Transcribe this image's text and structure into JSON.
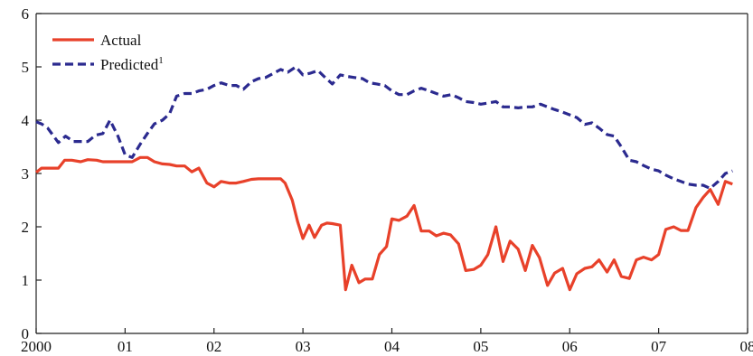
{
  "chart_data": {
    "type": "line",
    "xlim": [
      2000,
      2008
    ],
    "ylim": [
      0,
      6
    ],
    "grid": false,
    "legend_position": "top-left",
    "x_ticks": [
      {
        "value": 2000,
        "label": "2000"
      },
      {
        "value": 2001,
        "label": "01"
      },
      {
        "value": 2002,
        "label": "02"
      },
      {
        "value": 2003,
        "label": "03"
      },
      {
        "value": 2004,
        "label": "04"
      },
      {
        "value": 2005,
        "label": "05"
      },
      {
        "value": 2006,
        "label": "06"
      },
      {
        "value": 2007,
        "label": "07"
      },
      {
        "value": 2008,
        "label": "08"
      }
    ],
    "y_ticks": [
      0,
      1,
      2,
      3,
      4,
      5,
      6
    ],
    "series": [
      {
        "name": "Actual",
        "superscript": "",
        "color": "#e8412a",
        "dash": "solid",
        "points": [
          [
            2000.0,
            3.02
          ],
          [
            2000.06,
            3.1
          ],
          [
            2000.13,
            3.1
          ],
          [
            2000.25,
            3.1
          ],
          [
            2000.32,
            3.25
          ],
          [
            2000.4,
            3.25
          ],
          [
            2000.5,
            3.22
          ],
          [
            2000.58,
            3.26
          ],
          [
            2000.68,
            3.25
          ],
          [
            2000.75,
            3.22
          ],
          [
            2000.88,
            3.22
          ],
          [
            2001.0,
            3.22
          ],
          [
            2001.08,
            3.22
          ],
          [
            2001.17,
            3.3
          ],
          [
            2001.25,
            3.3
          ],
          [
            2001.33,
            3.22
          ],
          [
            2001.42,
            3.18
          ],
          [
            2001.5,
            3.17
          ],
          [
            2001.58,
            3.14
          ],
          [
            2001.67,
            3.14
          ],
          [
            2001.75,
            3.03
          ],
          [
            2001.83,
            3.1
          ],
          [
            2001.92,
            2.82
          ],
          [
            2002.0,
            2.75
          ],
          [
            2002.08,
            2.85
          ],
          [
            2002.17,
            2.82
          ],
          [
            2002.25,
            2.82
          ],
          [
            2002.33,
            2.85
          ],
          [
            2002.42,
            2.89
          ],
          [
            2002.5,
            2.9
          ],
          [
            2002.58,
            2.9
          ],
          [
            2002.67,
            2.9
          ],
          [
            2002.75,
            2.9
          ],
          [
            2002.8,
            2.82
          ],
          [
            2002.88,
            2.5
          ],
          [
            2002.94,
            2.1
          ],
          [
            2003.0,
            1.78
          ],
          [
            2003.07,
            2.03
          ],
          [
            2003.13,
            1.8
          ],
          [
            2003.21,
            2.03
          ],
          [
            2003.27,
            2.07
          ],
          [
            2003.33,
            2.06
          ],
          [
            2003.42,
            2.03
          ],
          [
            2003.48,
            0.82
          ],
          [
            2003.55,
            1.28
          ],
          [
            2003.63,
            0.95
          ],
          [
            2003.7,
            1.02
          ],
          [
            2003.78,
            1.02
          ],
          [
            2003.86,
            1.48
          ],
          [
            2003.94,
            1.63
          ],
          [
            2004.0,
            2.15
          ],
          [
            2004.08,
            2.12
          ],
          [
            2004.17,
            2.2
          ],
          [
            2004.25,
            2.4
          ],
          [
            2004.33,
            1.92
          ],
          [
            2004.42,
            1.92
          ],
          [
            2004.5,
            1.83
          ],
          [
            2004.58,
            1.88
          ],
          [
            2004.66,
            1.85
          ],
          [
            2004.75,
            1.68
          ],
          [
            2004.83,
            1.18
          ],
          [
            2004.92,
            1.2
          ],
          [
            2005.0,
            1.28
          ],
          [
            2005.08,
            1.48
          ],
          [
            2005.17,
            2.0
          ],
          [
            2005.25,
            1.35
          ],
          [
            2005.33,
            1.73
          ],
          [
            2005.42,
            1.58
          ],
          [
            2005.5,
            1.18
          ],
          [
            2005.58,
            1.65
          ],
          [
            2005.66,
            1.42
          ],
          [
            2005.75,
            0.9
          ],
          [
            2005.83,
            1.13
          ],
          [
            2005.92,
            1.22
          ],
          [
            2006.0,
            0.82
          ],
          [
            2006.08,
            1.12
          ],
          [
            2006.17,
            1.22
          ],
          [
            2006.25,
            1.25
          ],
          [
            2006.33,
            1.38
          ],
          [
            2006.42,
            1.15
          ],
          [
            2006.5,
            1.38
          ],
          [
            2006.58,
            1.07
          ],
          [
            2006.67,
            1.03
          ],
          [
            2006.75,
            1.38
          ],
          [
            2006.83,
            1.43
          ],
          [
            2006.92,
            1.38
          ],
          [
            2007.0,
            1.48
          ],
          [
            2007.08,
            1.95
          ],
          [
            2007.17,
            2.0
          ],
          [
            2007.25,
            1.93
          ],
          [
            2007.33,
            1.93
          ],
          [
            2007.42,
            2.36
          ],
          [
            2007.5,
            2.55
          ],
          [
            2007.58,
            2.7
          ],
          [
            2007.67,
            2.42
          ],
          [
            2007.75,
            2.85
          ],
          [
            2007.83,
            2.8
          ]
        ]
      },
      {
        "name": "Predicted",
        "superscript": "1",
        "color": "#2b2a8f",
        "dash": "dashed",
        "points": [
          [
            2000.0,
            3.97
          ],
          [
            2000.06,
            3.93
          ],
          [
            2000.13,
            3.85
          ],
          [
            2000.25,
            3.58
          ],
          [
            2000.33,
            3.7
          ],
          [
            2000.42,
            3.6
          ],
          [
            2000.58,
            3.6
          ],
          [
            2000.67,
            3.72
          ],
          [
            2000.75,
            3.75
          ],
          [
            2000.83,
            4.0
          ],
          [
            2000.92,
            3.7
          ],
          [
            2001.0,
            3.35
          ],
          [
            2001.08,
            3.3
          ],
          [
            2001.17,
            3.55
          ],
          [
            2001.25,
            3.75
          ],
          [
            2001.33,
            3.93
          ],
          [
            2001.42,
            4.0
          ],
          [
            2001.5,
            4.12
          ],
          [
            2001.58,
            4.45
          ],
          [
            2001.67,
            4.5
          ],
          [
            2001.75,
            4.5
          ],
          [
            2001.83,
            4.55
          ],
          [
            2001.92,
            4.58
          ],
          [
            2002.0,
            4.65
          ],
          [
            2002.08,
            4.7
          ],
          [
            2002.17,
            4.65
          ],
          [
            2002.25,
            4.65
          ],
          [
            2002.33,
            4.58
          ],
          [
            2002.42,
            4.72
          ],
          [
            2002.5,
            4.78
          ],
          [
            2002.58,
            4.8
          ],
          [
            2002.67,
            4.88
          ],
          [
            2002.75,
            4.95
          ],
          [
            2002.83,
            4.9
          ],
          [
            2002.92,
            5.0
          ],
          [
            2003.0,
            4.85
          ],
          [
            2003.08,
            4.88
          ],
          [
            2003.17,
            4.93
          ],
          [
            2003.25,
            4.8
          ],
          [
            2003.33,
            4.68
          ],
          [
            2003.42,
            4.85
          ],
          [
            2003.5,
            4.82
          ],
          [
            2003.58,
            4.8
          ],
          [
            2003.67,
            4.78
          ],
          [
            2003.75,
            4.7
          ],
          [
            2003.83,
            4.68
          ],
          [
            2003.92,
            4.65
          ],
          [
            2004.0,
            4.55
          ],
          [
            2004.08,
            4.48
          ],
          [
            2004.17,
            4.48
          ],
          [
            2004.25,
            4.55
          ],
          [
            2004.33,
            4.6
          ],
          [
            2004.42,
            4.55
          ],
          [
            2004.5,
            4.5
          ],
          [
            2004.58,
            4.45
          ],
          [
            2004.67,
            4.48
          ],
          [
            2004.75,
            4.42
          ],
          [
            2004.83,
            4.35
          ],
          [
            2004.92,
            4.33
          ],
          [
            2005.0,
            4.3
          ],
          [
            2005.08,
            4.32
          ],
          [
            2005.17,
            4.35
          ],
          [
            2005.25,
            4.25
          ],
          [
            2005.33,
            4.25
          ],
          [
            2005.42,
            4.23
          ],
          [
            2005.5,
            4.25
          ],
          [
            2005.58,
            4.25
          ],
          [
            2005.67,
            4.3
          ],
          [
            2005.75,
            4.25
          ],
          [
            2005.83,
            4.2
          ],
          [
            2005.92,
            4.15
          ],
          [
            2006.0,
            4.1
          ],
          [
            2006.08,
            4.05
          ],
          [
            2006.17,
            3.92
          ],
          [
            2006.25,
            3.95
          ],
          [
            2006.33,
            3.85
          ],
          [
            2006.42,
            3.73
          ],
          [
            2006.5,
            3.7
          ],
          [
            2006.58,
            3.5
          ],
          [
            2006.67,
            3.25
          ],
          [
            2006.75,
            3.22
          ],
          [
            2006.83,
            3.15
          ],
          [
            2006.92,
            3.08
          ],
          [
            2007.0,
            3.05
          ],
          [
            2007.08,
            2.97
          ],
          [
            2007.17,
            2.9
          ],
          [
            2007.25,
            2.85
          ],
          [
            2007.33,
            2.8
          ],
          [
            2007.42,
            2.78
          ],
          [
            2007.5,
            2.78
          ],
          [
            2007.58,
            2.72
          ],
          [
            2007.67,
            2.85
          ],
          [
            2007.75,
            3.0
          ],
          [
            2007.83,
            3.05
          ]
        ]
      }
    ]
  }
}
